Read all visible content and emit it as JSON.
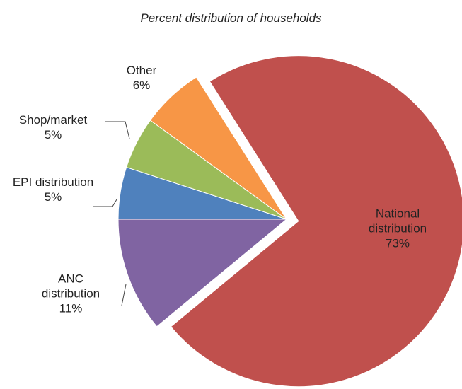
{
  "chart_data": {
    "type": "pie",
    "title": "Percent distribution of households",
    "categories": [
      "National distribution",
      "ANC distribution",
      "EPI distribution",
      "Shop/market",
      "Other"
    ],
    "values": [
      73,
      11,
      5,
      5,
      6
    ],
    "value_labels": [
      "73%",
      "11%",
      "5%",
      "5%",
      "6%"
    ],
    "colors": [
      "#c0504d",
      "#8064a2",
      "#4f81bd",
      "#9bbb59",
      "#f79646"
    ]
  }
}
